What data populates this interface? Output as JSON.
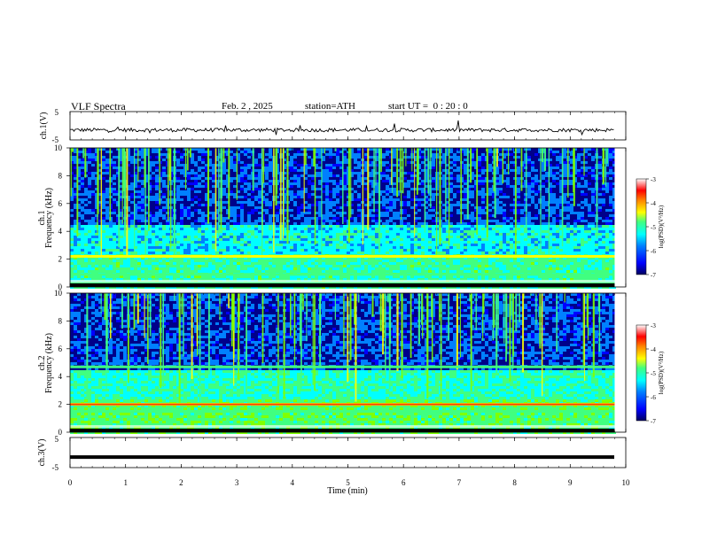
{
  "header": {
    "title": "VLF Spectra",
    "date": "Feb. 2 , 2025",
    "station": "station=ATH",
    "start_ut": "start UT =  0 : 20 : 0"
  },
  "chart_data": [
    {
      "type": "line",
      "panel": "ch1-waveform",
      "ylabel": "ch.1(V)",
      "ylim": [
        -5,
        5
      ],
      "yticks": [
        "5",
        "-5"
      ],
      "xlim": [
        0,
        10
      ],
      "description_series": "noisy trace around -1.5 V",
      "mean_value": -1.5
    },
    {
      "type": "heatmap",
      "panel": "ch1-spectrogram",
      "ylabel": "ch.1 Frequency (kHz)",
      "ylim": [
        0,
        10
      ],
      "yticks": [
        "0",
        "2",
        "4",
        "6",
        "8",
        "10"
      ],
      "xlim": [
        0,
        9.8
      ],
      "colorbar": {
        "label": "log(PSD)(V²/Hz)",
        "ticks": [
          "-3",
          "-4",
          "-5",
          "-6",
          "-7"
        ],
        "range": [
          -7,
          -3
        ]
      },
      "strong_bands_khz": [
        2.2,
        0.9,
        0.3
      ]
    },
    {
      "type": "heatmap",
      "panel": "ch2-spectrogram",
      "ylabel": "ch.2 Frequency (kHz)",
      "ylim": [
        0,
        10
      ],
      "yticks": [
        "0",
        "2",
        "4",
        "6",
        "8",
        "10"
      ],
      "xlim": [
        0,
        9.8
      ],
      "colorbar": {
        "label": "log(PSD)(V²/Hz)",
        "ticks": [
          "-3",
          "-4",
          "-5",
          "-6",
          "-7"
        ],
        "range": [
          -7,
          -3
        ]
      },
      "strong_bands_khz": [
        2.0,
        4.7,
        1.5
      ]
    },
    {
      "type": "line",
      "panel": "ch3-waveform",
      "ylabel": "ch.3(V)",
      "ylim": [
        -5,
        5
      ],
      "yticks": [
        "5",
        "-5"
      ],
      "xlim": [
        0,
        10
      ],
      "mean_value": -1.5
    }
  ],
  "x_axis": {
    "label": "Time (min)",
    "ticks": [
      "0",
      "1",
      "2",
      "3",
      "4",
      "5",
      "6",
      "7",
      "8",
      "9",
      "10"
    ],
    "range": [
      0,
      10
    ]
  },
  "colors": {
    "colormap": [
      "#00007f",
      "#0000ff",
      "#0080ff",
      "#00ffff",
      "#40ff80",
      "#80ff00",
      "#ffff00",
      "#ff8000",
      "#ff0000",
      "#ffffff"
    ]
  }
}
